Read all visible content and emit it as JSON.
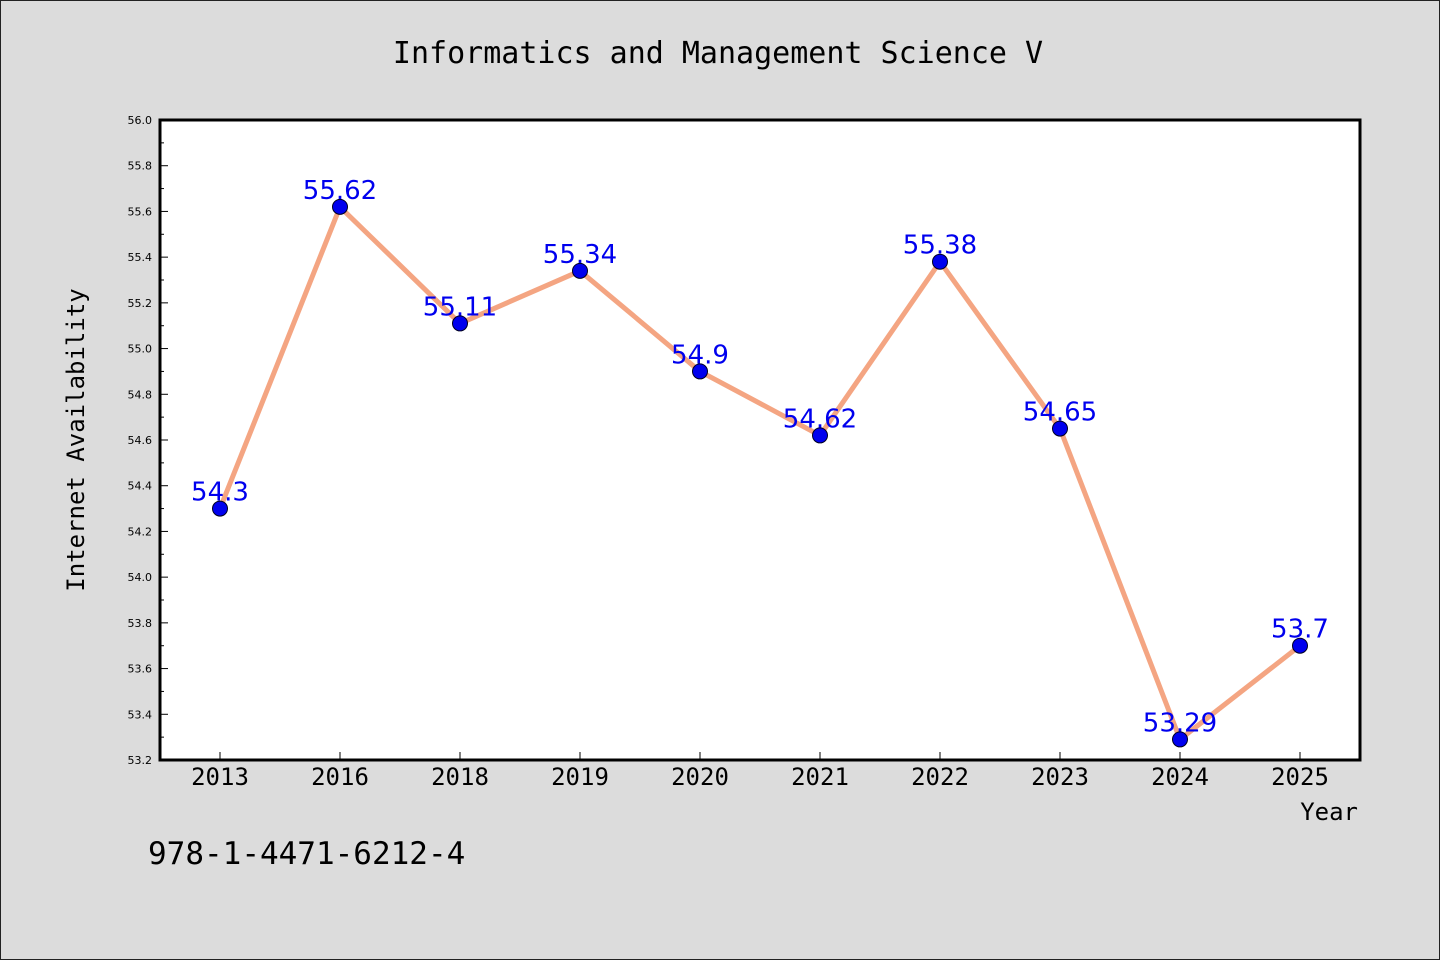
{
  "chart_data": {
    "type": "line",
    "title": "Informatics and Management Science V",
    "xlabel": "Year",
    "ylabel": "Internet Availability",
    "categories": [
      "2013",
      "2016",
      "2018",
      "2019",
      "2020",
      "2021",
      "2022",
      "2023",
      "2024",
      "2025"
    ],
    "series": [
      {
        "values": [
          54.3,
          55.62,
          55.11,
          55.34,
          54.9,
          54.62,
          55.38,
          54.65,
          53.29,
          53.7
        ],
        "data_labels": [
          "54.3",
          "55.62",
          "55.11",
          "55.34",
          "54.9",
          "54.62",
          "55.38",
          "54.65",
          "53.29",
          "53.7"
        ]
      }
    ],
    "ylim": [
      53.2,
      56.0
    ],
    "yticks": [
      "53.2",
      "53.4",
      "53.6",
      "53.8",
      "54.0",
      "54.2",
      "54.4",
      "54.6",
      "54.8",
      "55.0",
      "55.2",
      "55.4",
      "55.6",
      "55.8",
      "56.0"
    ],
    "grid": false,
    "legend": "none",
    "colors": {
      "line": "#f4a582",
      "marker": "#0000ee",
      "label": "#0000ee",
      "background": "#dcdcdc",
      "plot_background": "#ffffff"
    }
  },
  "footer": {
    "isbn": "978-1-4471-6212-4"
  }
}
